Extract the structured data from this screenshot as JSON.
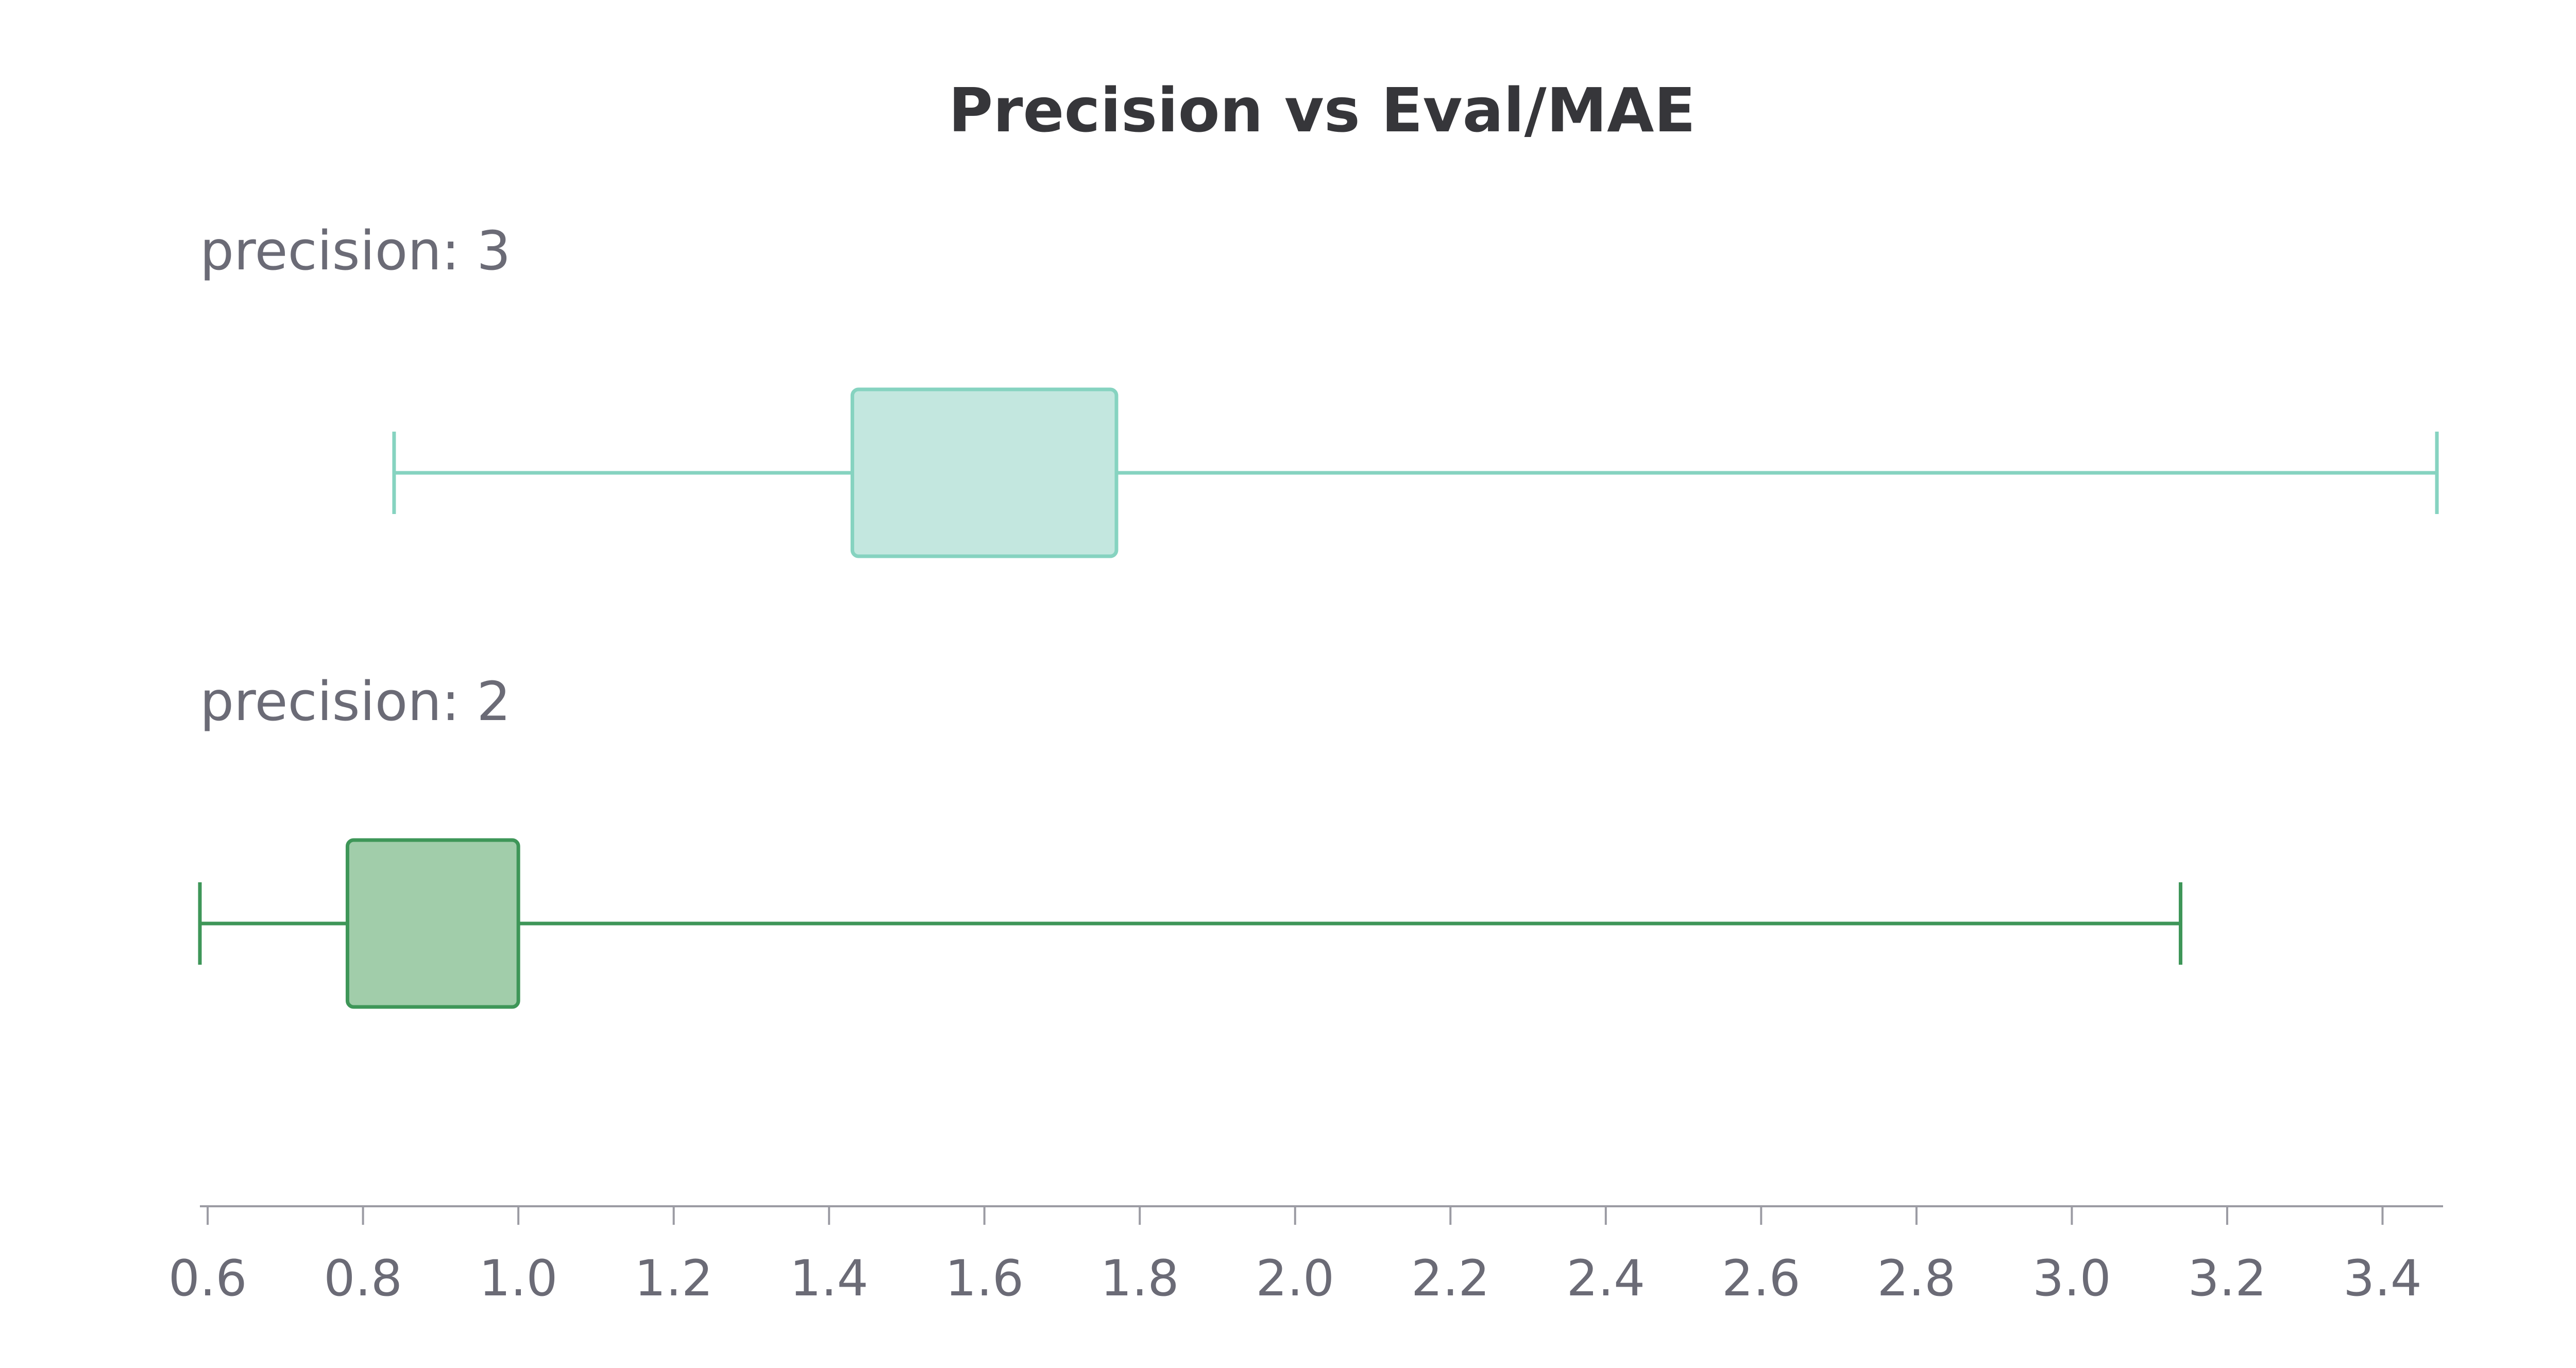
{
  "chart_data": {
    "type": "box",
    "orientation": "horizontal",
    "title": "Precision vs Eval/MAE",
    "xlabel": "",
    "xlim": [
      0.59,
      3.47
    ],
    "xticks": [
      "0.6",
      "0.8",
      "1.0",
      "1.2",
      "1.4",
      "1.6",
      "1.8",
      "2.0",
      "2.2",
      "2.4",
      "2.6",
      "2.8",
      "3.0",
      "3.2",
      "3.4"
    ],
    "grid": false,
    "groups": [
      {
        "label": "precision: 3",
        "whisker_low": 0.84,
        "q1": 1.43,
        "q3": 1.77,
        "whisker_high": 3.47,
        "color": "#86d3c0",
        "fill": "#c3e7df"
      },
      {
        "label": "precision: 2",
        "whisker_low": 0.59,
        "q1": 0.78,
        "q3": 1.0,
        "whisker_high": 3.14,
        "color": "#3e9658",
        "fill": "#a1cdaa"
      }
    ],
    "axis_color": "#9b9ba3"
  }
}
